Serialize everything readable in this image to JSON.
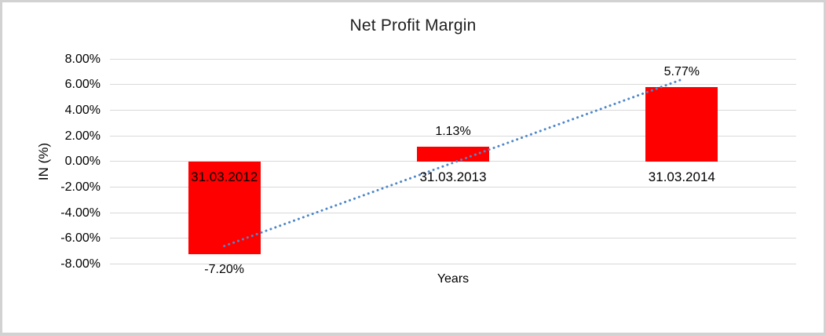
{
  "window": {
    "background_color": "#ffffff",
    "border_color": "#d2d2d2"
  },
  "chart_data": {
    "type": "bar",
    "title": "Net Profit Margin",
    "xlabel": "Years",
    "ylabel": "IN (%)",
    "categories": [
      "31.03.2012",
      "31.03.2013",
      "31.03.2014"
    ],
    "values": [
      -7.2,
      1.13,
      5.77
    ],
    "value_labels": [
      "-7.20%",
      "1.13%",
      "5.77%"
    ],
    "ylim": [
      -8,
      8
    ],
    "ytick_step": 2,
    "ytick_labels": [
      "8.00%",
      "6.00%",
      "4.00%",
      "2.00%",
      "0.00%",
      "-2.00%",
      "-4.00%",
      "-6.00%",
      "-8.00%"
    ],
    "ytick_values": [
      8,
      6,
      4,
      2,
      0,
      -2,
      -4,
      -6,
      -8
    ],
    "grid": true,
    "legend": "none",
    "bar_color": "#ff0000",
    "gridline_color": "#d9d9d9",
    "trendline": {
      "type": "linear",
      "line_style": "dotted",
      "color": "#4e87c9",
      "start_value": -6.59,
      "end_value": 6.39
    }
  }
}
